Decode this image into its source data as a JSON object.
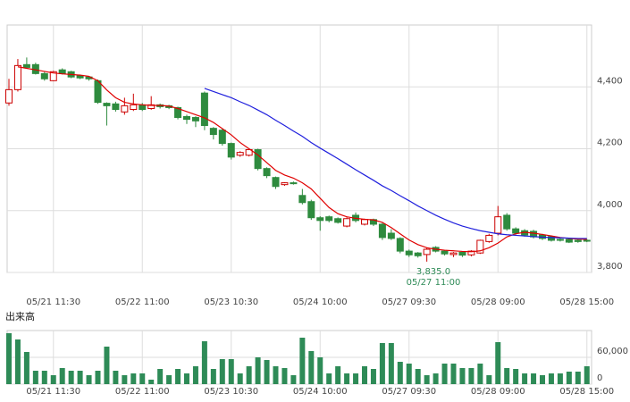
{
  "chart_data": [
    {
      "type": "candlestick",
      "categories": [
        null,
        null,
        null,
        null,
        null,
        "05/21 11:30",
        null,
        null,
        null,
        null,
        null,
        null,
        null,
        null,
        null,
        "05/22 11:00",
        null,
        null,
        null,
        null,
        null,
        null,
        null,
        null,
        null,
        "05/23 10:30",
        null,
        null,
        null,
        null,
        null,
        null,
        null,
        null,
        null,
        "05/24 10:00",
        null,
        null,
        null,
        null,
        null,
        null,
        null,
        null,
        null,
        "05/27 09:30",
        null,
        null,
        null,
        null,
        null,
        null,
        null,
        null,
        null,
        "05/28 09:00",
        null,
        null,
        null,
        null,
        null,
        null,
        null,
        null,
        null,
        "05/28 15:00"
      ],
      "open": [
        4348,
        4391,
        4472,
        4472,
        4443,
        4420,
        4455,
        4449,
        4437,
        4432,
        4420,
        4347,
        4345,
        4319,
        4327,
        4342,
        4330,
        4342,
        4339,
        4333,
        4304,
        4301,
        4380,
        4266,
        4260,
        4217,
        4179,
        4179,
        4197,
        4136,
        4107,
        4084,
        4090,
        4049,
        4029,
        3977,
        3980,
        3974,
        3950,
        3985,
        3956,
        3971,
        3956,
        3927,
        3910,
        3869,
        3863,
        3858,
        3881,
        3869,
        3858,
        3865,
        3857,
        3863,
        3900,
        3927,
        3985,
        3941,
        3935,
        3933,
        3921,
        3916,
        3907,
        3907,
        3904,
        3904
      ],
      "high": [
        4426,
        4490,
        4495,
        4478,
        4448,
        4452,
        4460,
        4452,
        4440,
        4435,
        4424,
        4350,
        4352,
        4365,
        4378,
        4348,
        4370,
        4346,
        4342,
        4336,
        4310,
        4305,
        4385,
        4270,
        4264,
        4220,
        4192,
        4200,
        4200,
        4140,
        4110,
        4092,
        4094,
        4070,
        4035,
        3982,
        3984,
        3978,
        3978,
        3994,
        3974,
        3974,
        3960,
        3940,
        3914,
        3874,
        3866,
        3880,
        3885,
        3872,
        3866,
        3868,
        3872,
        3906,
        3925,
        4015,
        3992,
        3946,
        3940,
        3938,
        3925,
        3920,
        3912,
        3910,
        3908,
        3908
      ],
      "low": [
        4339,
        4385,
        4460,
        4440,
        4420,
        4418,
        4440,
        4428,
        4425,
        4420,
        4345,
        4275,
        4320,
        4310,
        4322,
        4322,
        4326,
        4330,
        4328,
        4295,
        4280,
        4270,
        4260,
        4230,
        4210,
        4165,
        4174,
        4175,
        4130,
        4105,
        4070,
        4080,
        4084,
        4020,
        3970,
        3935,
        3962,
        3958,
        3946,
        3962,
        3952,
        3950,
        3905,
        3905,
        3862,
        3850,
        3848,
        3835,
        3865,
        3855,
        3850,
        3850,
        3852,
        3860,
        3896,
        3920,
        3935,
        3922,
        3916,
        3910,
        3905,
        3900,
        3900,
        3895,
        3896,
        3898
      ],
      "close": [
        4391,
        4469,
        4463,
        4443,
        4426,
        4449,
        4443,
        4432,
        4429,
        4426,
        4350,
        4339,
        4327,
        4339,
        4342,
        4327,
        4342,
        4336,
        4333,
        4301,
        4295,
        4290,
        4275,
        4246,
        4217,
        4173,
        4188,
        4197,
        4136,
        4113,
        4078,
        4090,
        4087,
        4026,
        3977,
        3968,
        3968,
        3962,
        3974,
        3968,
        3971,
        3956,
        3913,
        3910,
        3869,
        3857,
        3854,
        3875,
        3869,
        3860,
        3863,
        3856,
        3869,
        3904,
        3920,
        3980,
        3941,
        3927,
        3921,
        3915,
        3910,
        3904,
        3904,
        3898,
        3900,
        3902
      ],
      "up_color": "#cc0000",
      "down_color": "#2e8b3e",
      "lines": [
        {
          "color": "#e00000",
          "values": [
            null,
            4465,
            4460,
            4455,
            4450,
            4445,
            4442,
            4440,
            4438,
            4434,
            4420,
            4390,
            4365,
            4350,
            4345,
            4342,
            4340,
            4340,
            4338,
            4330,
            4320,
            4310,
            4300,
            4285,
            4265,
            4245,
            4220,
            4200,
            4180,
            4155,
            4130,
            4115,
            4105,
            4090,
            4070,
            4040,
            4010,
            3990,
            3980,
            3975,
            3972,
            3970,
            3962,
            3945,
            3925,
            3905,
            3890,
            3880,
            3875,
            3872,
            3870,
            3868,
            3867,
            3870,
            3880,
            3895,
            3915,
            3925,
            3930,
            3927,
            3923,
            3918,
            3913,
            3910,
            3908,
            3907
          ]
        },
        {
          "color": "#2020dd",
          "values": [
            null,
            null,
            null,
            null,
            null,
            null,
            null,
            null,
            null,
            null,
            null,
            null,
            null,
            null,
            null,
            null,
            null,
            null,
            null,
            null,
            null,
            null,
            4395,
            4385,
            4375,
            4365,
            4352,
            4340,
            4325,
            4310,
            4292,
            4275,
            4257,
            4240,
            4220,
            4202,
            4185,
            4168,
            4150,
            4132,
            4115,
            4098,
            4080,
            4065,
            4048,
            4032,
            4015,
            4000,
            3985,
            3972,
            3960,
            3950,
            3942,
            3935,
            3930,
            3925,
            3922,
            3920,
            3918,
            3916,
            3914,
            3913,
            3912,
            3911,
            3910,
            3910
          ]
        }
      ],
      "ylim": [
        3800,
        4600
      ],
      "yticks": [
        {
          "value": 3800,
          "label": "3,800"
        },
        {
          "value": 4000,
          "label": "4,000"
        },
        {
          "value": 4200,
          "label": "4,200"
        },
        {
          "value": 4400,
          "label": "4,400"
        }
      ],
      "annotations": [
        {
          "value": 3835,
          "label": "3,835.0",
          "text": "05/27 11:00"
        }
      ]
    },
    {
      "type": "bar",
      "title": "出来高",
      "categories": [
        null,
        null,
        null,
        null,
        null,
        "05/21 11:30",
        null,
        null,
        null,
        null,
        null,
        null,
        null,
        null,
        null,
        "05/22 11:00",
        null,
        null,
        null,
        null,
        null,
        null,
        null,
        null,
        null,
        "05/23 10:30",
        null,
        null,
        null,
        null,
        null,
        null,
        null,
        null,
        null,
        "05/24 10:00",
        null,
        null,
        null,
        null,
        null,
        null,
        null,
        null,
        null,
        "05/27 09:30",
        null,
        null,
        null,
        null,
        null,
        null,
        null,
        null,
        null,
        "05/28 09:00",
        null,
        null,
        null,
        null,
        null,
        null,
        null,
        null,
        null,
        "05/28 15:00"
      ],
      "values": [
        114000,
        100000,
        72000,
        30000,
        30000,
        20000,
        36000,
        30000,
        30000,
        20000,
        30000,
        84000,
        30000,
        20000,
        24000,
        24000,
        10000,
        34000,
        20000,
        34000,
        24000,
        40000,
        96000,
        34000,
        56000,
        56000,
        24000,
        40000,
        60000,
        54000,
        40000,
        36000,
        20000,
        104000,
        74000,
        60000,
        24000,
        40000,
        24000,
        24000,
        40000,
        34000,
        92000,
        92000,
        50000,
        46000,
        34000,
        20000,
        24000,
        46000,
        46000,
        36000,
        36000,
        46000,
        20000,
        94000,
        36000,
        34000,
        24000,
        24000,
        20000,
        24000,
        24000,
        28000,
        28000,
        40000
      ],
      "color": "#2e8b57",
      "ylim": [
        0,
        120000
      ],
      "yticks": [
        0,
        {
          "value": 60000,
          "label": "60,000"
        }
      ]
    }
  ]
}
